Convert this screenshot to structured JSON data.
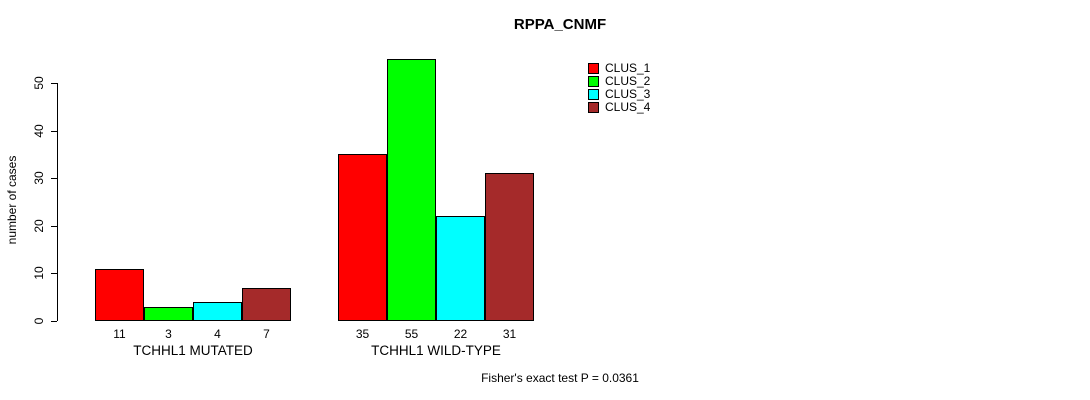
{
  "chart_data": {
    "type": "bar",
    "title": "RPPA_CNMF",
    "xlabel": "",
    "ylabel": "number of cases",
    "ylim": [
      0,
      55
    ],
    "yticks": [
      0,
      10,
      20,
      30,
      40,
      50
    ],
    "grid": false,
    "legend_position": "top-right",
    "categories": [
      "TCHHL1 MUTATED",
      "TCHHL1 WILD-TYPE"
    ],
    "series": [
      {
        "name": "CLUS_1",
        "color": "#ff0000",
        "values": [
          11,
          35
        ]
      },
      {
        "name": "CLUS_2",
        "color": "#00ff00",
        "values": [
          3,
          55
        ]
      },
      {
        "name": "CLUS_3",
        "color": "#00ffff",
        "values": [
          4,
          22
        ]
      },
      {
        "name": "CLUS_4",
        "color": "#a52a2a",
        "values": [
          7,
          31
        ]
      }
    ],
    "bar_value_labels": [
      [
        "11",
        "3",
        "4",
        "7"
      ],
      [
        "35",
        "55",
        "22",
        "31"
      ]
    ],
    "annotation": "Fisher's exact test P = 0.0361",
    "colors": {
      "background": "#ffffff",
      "axis": "#000000",
      "bar_border": "#000000",
      "text": "#000000"
    }
  }
}
